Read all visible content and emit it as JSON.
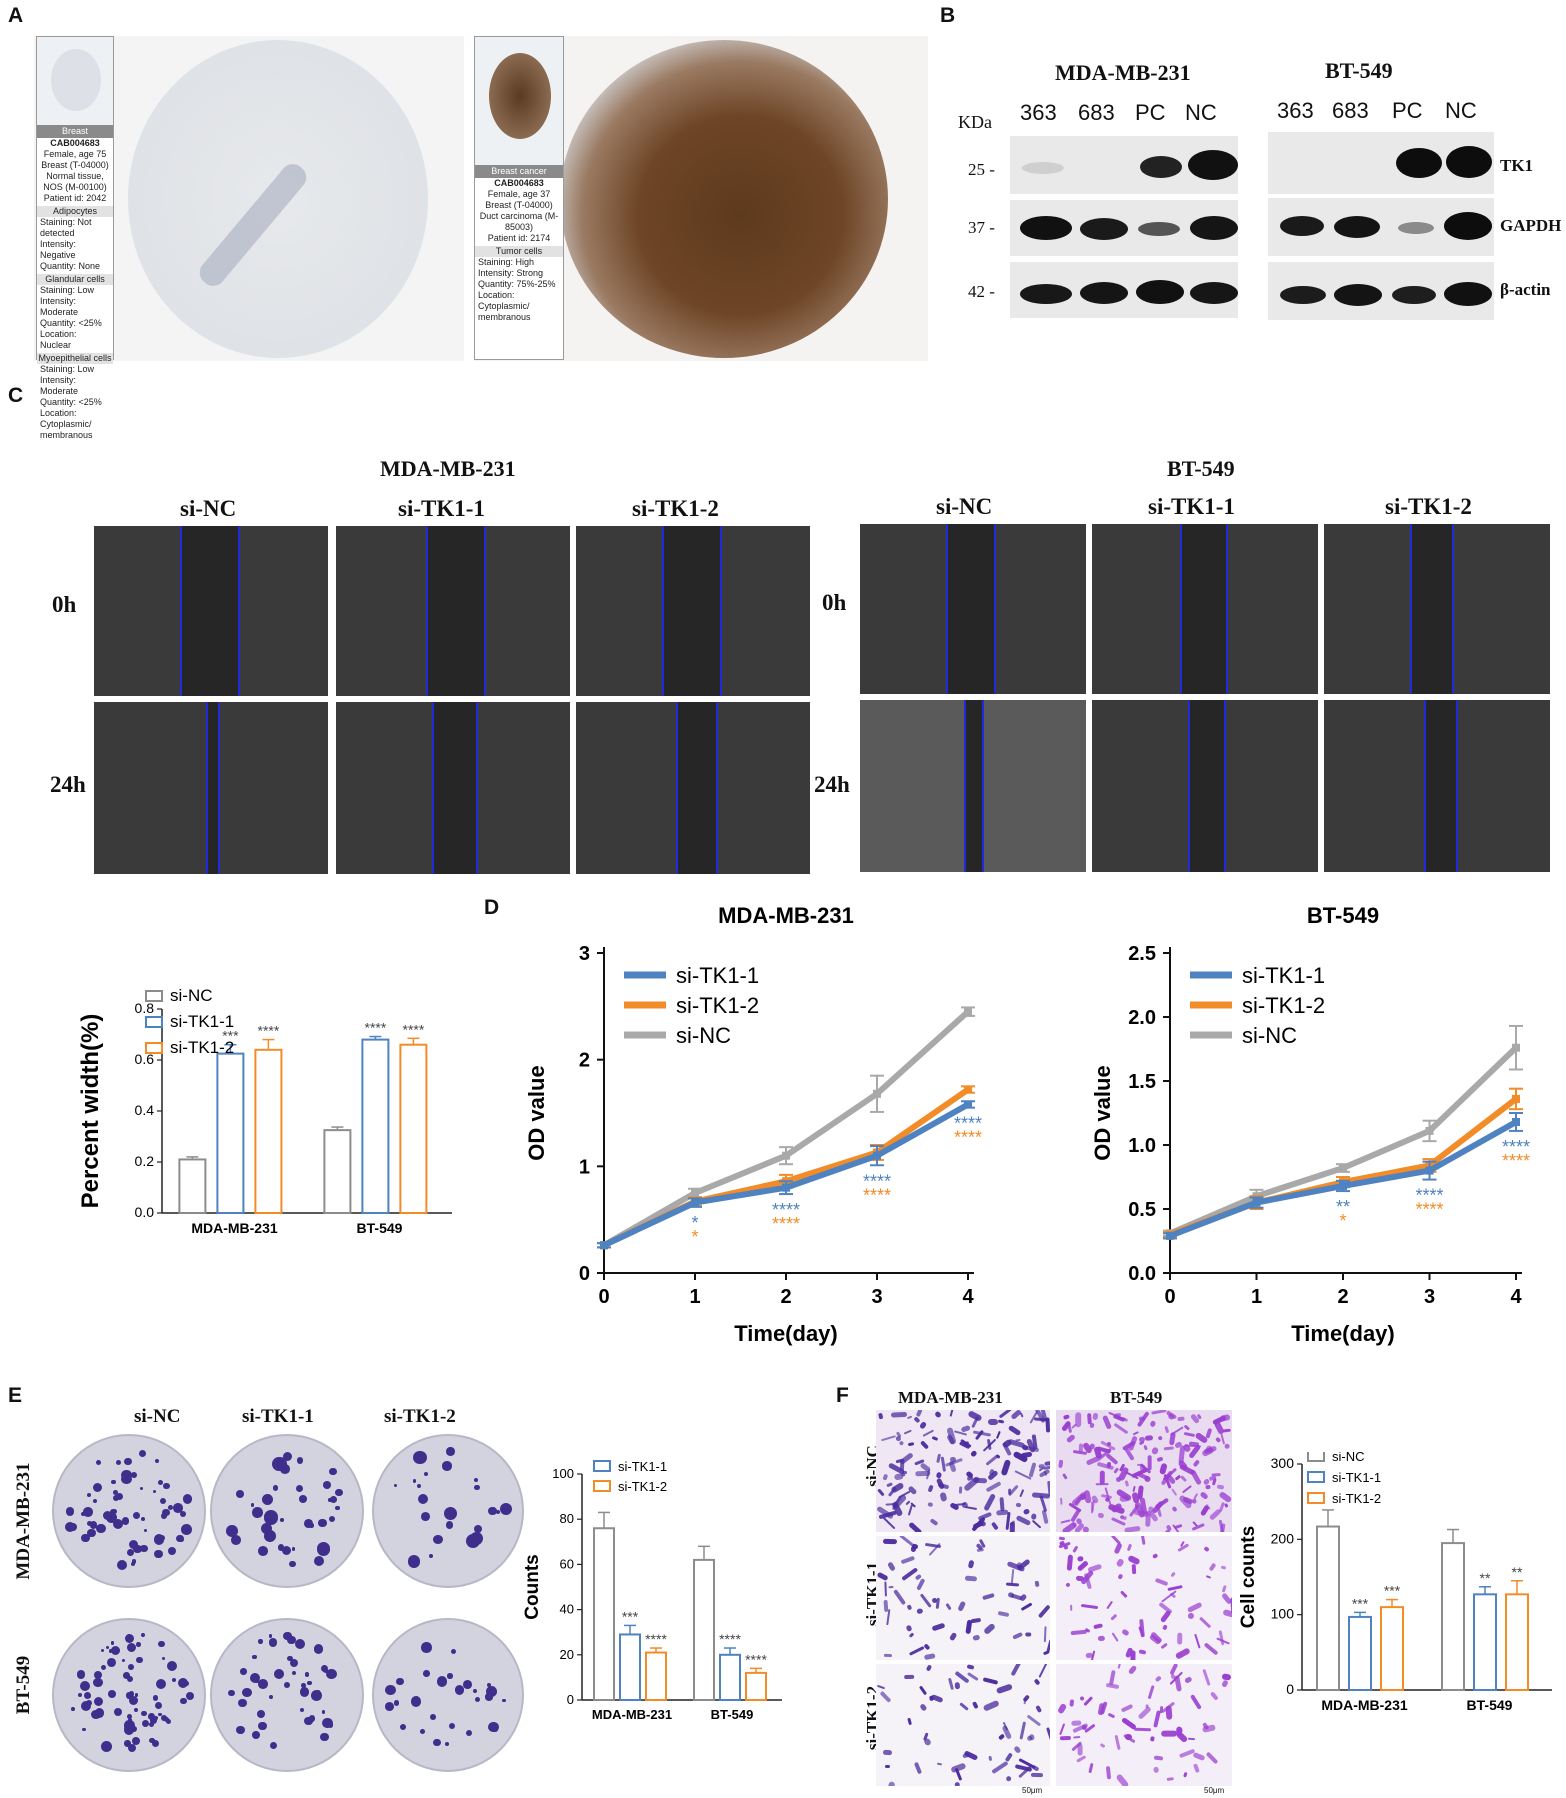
{
  "panels": {
    "a": {
      "letter": "A",
      "left_card": {
        "header": "Breast",
        "id": "CAB004683",
        "lines": [
          "Female, age 75",
          "Breast (T-04000)",
          "Normal tissue, NOS (M-00100)",
          "Patient id: 2042"
        ],
        "sections": [
          {
            "title": "Adipocytes",
            "rows": [
              "Staining: Not detected",
              "Intensity: Negative",
              "Quantity: None"
            ]
          },
          {
            "title": "Glandular cells",
            "rows": [
              "Staining: Low",
              "Intensity: Moderate",
              "Quantity: <25%",
              "Location: Nuclear"
            ]
          },
          {
            "title": "Myoepithelial cells",
            "rows": [
              "Staining: Low",
              "Intensity: Moderate",
              "Quantity: <25%",
              "Location: Cytoplasmic/ membranous"
            ]
          }
        ]
      },
      "right_card": {
        "header": "Breast cancer",
        "id": "CAB004683",
        "lines": [
          "Female, age 37",
          "Breast (T-04000)",
          "Duct carcinoma (M-85003)",
          "Patient id: 2174"
        ],
        "sections": [
          {
            "title": "Tumor cells",
            "rows": [
              "Staining: High",
              "Intensity: Strong",
              "Quantity: 75%-25%",
              "Location: Cytoplasmic/ membranous"
            ]
          }
        ]
      }
    },
    "b": {
      "letter": "B",
      "left_title": "MDA-MB-231",
      "right_title": "BT-549",
      "kda": "KDa",
      "lanes": [
        "363",
        "683",
        "PC",
        "NC"
      ],
      "mw": [
        "25 -",
        "37 -",
        "42 -"
      ],
      "proteins": [
        "TK1",
        "GAPDH",
        "β-actin"
      ]
    },
    "c": {
      "letter": "C",
      "left_title": "MDA-MB-231",
      "right_title": "BT-549",
      "cols": [
        "si-NC",
        "si-TK1-1",
        "si-TK1-2"
      ],
      "rows": [
        "0h",
        "24h"
      ]
    },
    "d": {
      "letter": "D"
    },
    "e": {
      "letter": "E",
      "cols": [
        "si-NC",
        "si-TK1-1",
        "si-TK1-2"
      ],
      "rows": [
        "MDA-MB-231",
        "BT-549"
      ]
    },
    "f": {
      "letter": "F",
      "cols": [
        "MDA-MB-231",
        "BT-549"
      ],
      "rows": [
        "si-NC",
        "si-TK1-1",
        "si-TK1-2"
      ],
      "scale": "50μm"
    }
  },
  "chart_data": [
    {
      "id": "width",
      "type": "bar",
      "categories": [
        "MDA-MB-231",
        "BT-549"
      ],
      "series": [
        {
          "name": "si-NC",
          "values": [
            0.21,
            0.325
          ],
          "err": [
            0.01,
            0.012
          ]
        },
        {
          "name": "si-TK1-1",
          "values": [
            0.625,
            0.68
          ],
          "err": [
            0.035,
            0.012
          ]
        },
        {
          "name": "si-TK1-2",
          "values": [
            0.64,
            0.66
          ],
          "err": [
            0.04,
            0.025
          ]
        }
      ],
      "sig": [
        [
          "",
          "***",
          "****"
        ],
        [
          "",
          "****",
          "****"
        ]
      ],
      "ylabel": "Percent width(%)",
      "ylim": [
        0,
        0.8
      ],
      "yticks": [
        "0.0",
        "0.2",
        "0.4",
        "0.6",
        "0.8"
      ],
      "legend": "top-left"
    },
    {
      "id": "od231",
      "type": "line",
      "title": "MDA-MB-231",
      "x": [
        0,
        1,
        2,
        3,
        4
      ],
      "series": [
        {
          "name": "si-TK1-1",
          "values": [
            0.26,
            0.66,
            0.8,
            1.1,
            1.58
          ],
          "err": [
            0.02,
            0.04,
            0.06,
            0.09,
            0.03
          ]
        },
        {
          "name": "si-TK1-2",
          "values": [
            0.26,
            0.67,
            0.86,
            1.13,
            1.72
          ],
          "err": [
            0.02,
            0.04,
            0.06,
            0.07,
            0.03
          ]
        },
        {
          "name": "si-NC",
          "values": [
            0.26,
            0.75,
            1.1,
            1.68,
            2.45
          ],
          "err": [
            0.02,
            0.04,
            0.08,
            0.17,
            0.04
          ]
        }
      ],
      "sig": [
        {
          "x": 1,
          "t1": "*",
          "t2": "*"
        },
        {
          "x": 2,
          "t1": "****",
          "t2": "****"
        },
        {
          "x": 3,
          "t1": "****",
          "t2": "****"
        },
        {
          "x": 4,
          "t1": "****",
          "t2": "****"
        }
      ],
      "xlabel": "Time(day)",
      "ylabel": "OD value",
      "ylim": [
        0,
        3
      ],
      "yticks": [
        "0",
        "1",
        "2",
        "3"
      ],
      "xticks": [
        "0",
        "1",
        "2",
        "3",
        "4"
      ],
      "legend": "top-left"
    },
    {
      "id": "od549",
      "type": "line",
      "title": "BT-549",
      "x": [
        0,
        1,
        2,
        3,
        4
      ],
      "series": [
        {
          "name": "si-TK1-1",
          "values": [
            0.29,
            0.55,
            0.68,
            0.8,
            1.18
          ],
          "err": [
            0.02,
            0.04,
            0.04,
            0.07,
            0.07
          ]
        },
        {
          "name": "si-TK1-2",
          "values": [
            0.3,
            0.55,
            0.71,
            0.84,
            1.36
          ],
          "err": [
            0.02,
            0.05,
            0.04,
            0.05,
            0.08
          ]
        },
        {
          "name": "si-NC",
          "values": [
            0.31,
            0.6,
            0.82,
            1.11,
            1.76
          ],
          "err": [
            0.02,
            0.05,
            0.03,
            0.08,
            0.17
          ]
        }
      ],
      "sig": [
        {
          "x": 2,
          "t1": "**",
          "t2": "*"
        },
        {
          "x": 3,
          "t1": "****",
          "t2": "****"
        },
        {
          "x": 4,
          "t1": "****",
          "t2": "****"
        }
      ],
      "xlabel": "Time(day)",
      "ylabel": "OD value",
      "ylim": [
        0,
        2.5
      ],
      "yticks": [
        "0.0",
        "0.5",
        "1.0",
        "1.5",
        "2.0",
        "2.5"
      ],
      "xticks": [
        "0",
        "1",
        "2",
        "3",
        "4"
      ],
      "legend": "top-left"
    },
    {
      "id": "counts",
      "type": "bar",
      "categories": [
        "MDA-MB-231",
        "BT-549"
      ],
      "series": [
        {
          "name": "si-NC",
          "values": [
            76,
            62
          ],
          "err": [
            7,
            6
          ]
        },
        {
          "name": "si-TK1-1",
          "values": [
            29,
            20
          ],
          "err": [
            4,
            3
          ]
        },
        {
          "name": "si-TK1-2",
          "values": [
            21,
            12
          ],
          "err": [
            2,
            2
          ]
        }
      ],
      "sig": [
        [
          "",
          "***",
          "****"
        ],
        [
          "",
          "****",
          "****"
        ]
      ],
      "ylabel": "Counts",
      "ylim": [
        0,
        100
      ],
      "yticks": [
        "0",
        "20",
        "40",
        "60",
        "80",
        "100"
      ],
      "legend": "top-left"
    },
    {
      "id": "cells",
      "type": "bar",
      "categories": [
        "MDA-MB-231",
        "BT-549"
      ],
      "series": [
        {
          "name": "si-NC",
          "values": [
            217,
            195
          ],
          "err": [
            22,
            18
          ]
        },
        {
          "name": "si-TK1-1",
          "values": [
            97,
            127
          ],
          "err": [
            6,
            10
          ]
        },
        {
          "name": "si-TK1-2",
          "values": [
            110,
            127
          ],
          "err": [
            10,
            18
          ]
        }
      ],
      "sig": [
        [
          "",
          "***",
          "***"
        ],
        [
          "",
          "**",
          "**"
        ]
      ],
      "ylabel": "Cell counts",
      "ylim": [
        0,
        300
      ],
      "yticks": [
        "0",
        "100",
        "200",
        "300"
      ],
      "legend": "top-left"
    }
  ],
  "colors": {
    "si-NC": "#8c8c8c",
    "si-TK1-1": "#4f82c0",
    "si-TK1-2": "#f28c28",
    "nc_line": "#a9a9a9",
    "scratch_edge": "#1f2bd8",
    "crystal_violet": "#5b3aa8"
  }
}
